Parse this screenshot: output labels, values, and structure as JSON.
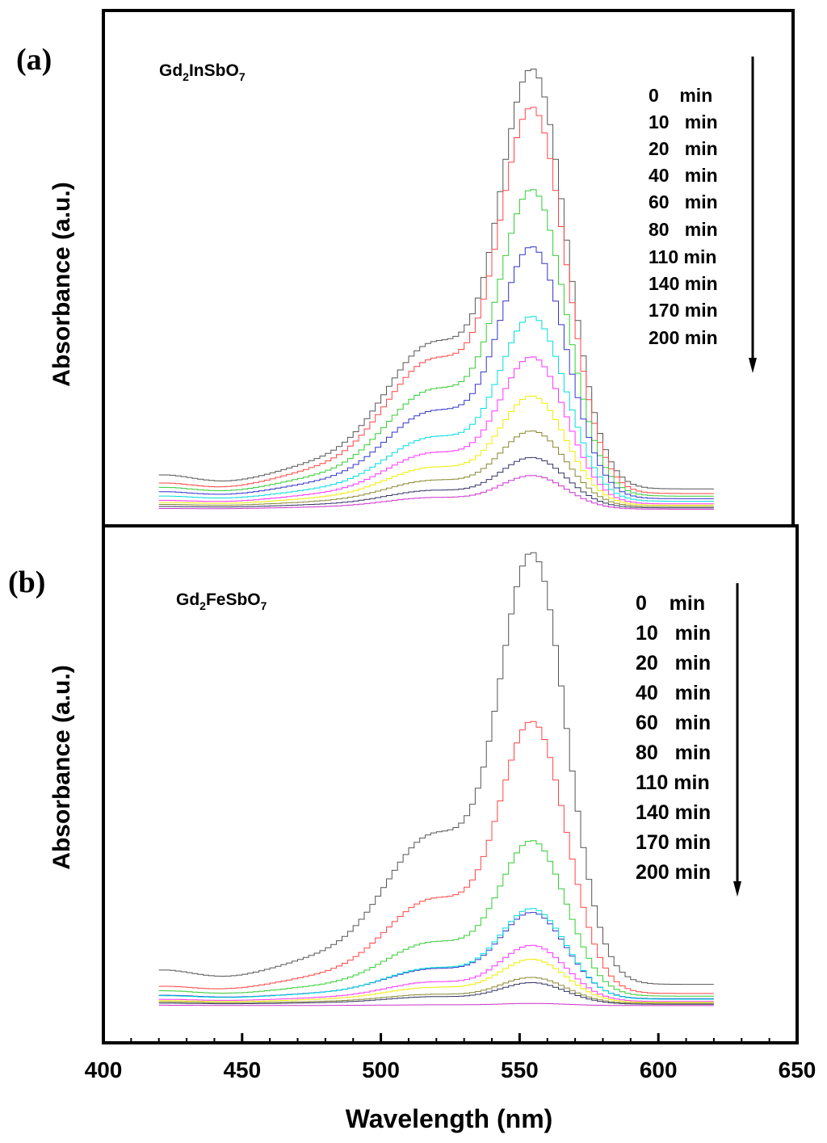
{
  "chart_data": [
    {
      "type": "line",
      "panel_label": "(a)",
      "sample": {
        "base": "Gd",
        "sub1": "2",
        "mid": "InSbO",
        "sub2": "7"
      },
      "ylabel": "Absorbance (a.u.)",
      "xlim": [
        400,
        650
      ],
      "ylim": [
        0,
        1.08
      ],
      "legend": [
        "0    min",
        "10   min",
        "20   min",
        "40   min",
        "60   min",
        "80   min",
        "110 min",
        "140 min",
        "170 min",
        "200 min"
      ],
      "series": [
        {
          "name": "0 min",
          "color": "#555555",
          "amp": 1.0,
          "base": 0.04
        },
        {
          "name": "10 min",
          "color": "#ff4444",
          "amp": 0.92,
          "base": 0.03
        },
        {
          "name": "20 min",
          "color": "#33cc33",
          "amp": 0.73,
          "base": 0.025
        },
        {
          "name": "40 min",
          "color": "#3333cc",
          "amp": 0.6,
          "base": 0.02
        },
        {
          "name": "60 min",
          "color": "#00dddd",
          "amp": 0.44,
          "base": 0.015
        },
        {
          "name": "80 min",
          "color": "#ff33ff",
          "amp": 0.35,
          "base": 0.01
        },
        {
          "name": "110 min",
          "color": "#eeee00",
          "amp": 0.26,
          "base": 0.008
        },
        {
          "name": "140 min",
          "color": "#888833",
          "amp": 0.18,
          "base": 0.006
        },
        {
          "name": "170 min",
          "color": "#333366",
          "amp": 0.12,
          "base": 0.004
        },
        {
          "name": "200 min",
          "color": "#cc33cc",
          "amp": 0.08,
          "base": 0.002
        }
      ]
    },
    {
      "type": "line",
      "panel_label": "(b)",
      "sample": {
        "base": "Gd",
        "sub1": "2",
        "mid": "FeSbO",
        "sub2": "7"
      },
      "ylabel": "Absorbance (a.u.)",
      "xlabel": "Wavelength (nm)",
      "xlim": [
        400,
        650
      ],
      "xticks": [
        400,
        450,
        500,
        550,
        600,
        650
      ],
      "ylim": [
        0,
        1.08
      ],
      "legend": [
        "0    min",
        "10   min",
        "20   min",
        "40   min",
        "60   min",
        "80   min",
        "110 min",
        "140 min",
        "170 min",
        "200 min"
      ],
      "series": [
        {
          "name": "0 min",
          "color": "#555555",
          "amp": 1.0,
          "base": 0.04
        },
        {
          "name": "10 min",
          "color": "#ff4444",
          "amp": 0.63,
          "base": 0.02
        },
        {
          "name": "20 min",
          "color": "#33cc33",
          "amp": 0.36,
          "base": 0.015
        },
        {
          "name": "40 min",
          "color": "#3333cc",
          "amp": 0.2,
          "base": 0.01
        },
        {
          "name": "60 min",
          "color": "#00dddd",
          "amp": 0.21,
          "base": 0.01
        },
        {
          "name": "80 min",
          "color": "#ff33ff",
          "amp": 0.13,
          "base": 0.006
        },
        {
          "name": "110 min",
          "color": "#eeee00",
          "amp": 0.1,
          "base": 0.005
        },
        {
          "name": "140 min",
          "color": "#888833",
          "amp": 0.06,
          "base": 0.004
        },
        {
          "name": "170 min",
          "color": "#333366",
          "amp": 0.05,
          "base": 0.003
        },
        {
          "name": "200 min",
          "color": "#cc33cc",
          "amp": 0.005,
          "base": 0.001
        }
      ]
    }
  ]
}
